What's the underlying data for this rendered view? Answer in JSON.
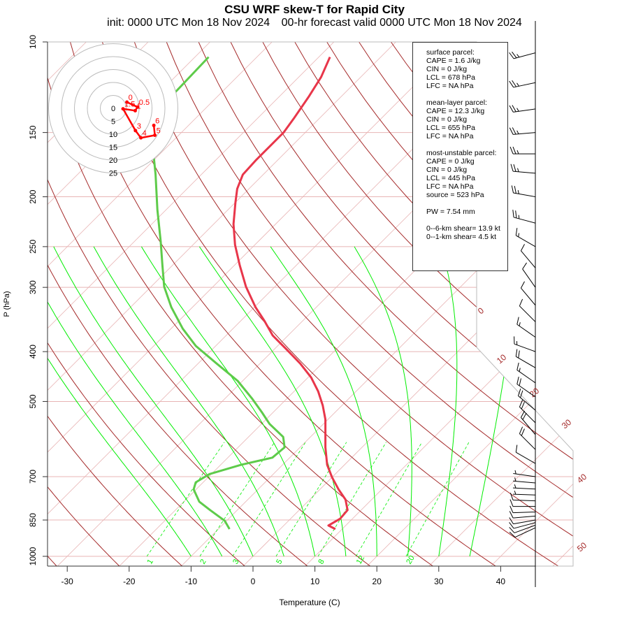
{
  "title": "CSU WRF skew-T for Rapid City",
  "subtitle_init": "init: 0000 UTC Mon 18 Nov 2024",
  "subtitle_valid": "00-hr forecast valid 0000 UTC Mon 18 Nov 2024",
  "info": {
    "surface": [
      "surface parcel:",
      "CAPE = 1.6 J/kg",
      "CIN = 0 J/kg",
      "LCL = 678 hPa",
      "LFC = NA hPa"
    ],
    "mean_layer": [
      "mean-layer parcel:",
      "CAPE = 12.3 J/kg",
      "CIN = 0 J/kg",
      "LCL = 655 hPa",
      "LFC = NA hPa"
    ],
    "most_unstable": [
      "most-unstable parcel:",
      "CAPE = 0 J/kg",
      "CIN = 0 J/kg",
      "LCL = 445 hPa",
      "LFC = NA hPa",
      "source = 523 hPa"
    ],
    "pw": "PW =  7.54 mm",
    "shear": [
      "0--6-km shear= 13.9 kt",
      "0--1-km shear= 4.5 kt"
    ]
  },
  "colors": {
    "temperature": "#e8364a",
    "dewpoint": "#5ecb4a",
    "dry_adiabat": "#a52a2a",
    "isotherm": "#e8b4b4",
    "moist": "#00ee00",
    "hodo": "#ff0000"
  },
  "chart_data": {
    "type": "line",
    "xlabel": "Temperature (C)",
    "ylabel": "P (hPa)",
    "xticks": [
      "-30",
      "-20",
      "-10",
      "0",
      "10",
      "20",
      "30",
      "40"
    ],
    "xtick_values": [
      -30,
      -20,
      -10,
      0,
      10,
      20,
      30,
      40
    ],
    "yticks": [
      "100",
      "150",
      "200",
      "250",
      "300",
      "400",
      "500",
      "700",
      "850",
      "1000"
    ],
    "ytick_values": [
      100,
      150,
      200,
      250,
      300,
      400,
      500,
      700,
      850,
      1000
    ],
    "isotherm_labels": [
      "0",
      "10",
      "20",
      "30",
      "40",
      "50"
    ],
    "mixing_ratio_labels": [
      "1",
      "2",
      "3",
      "5",
      "8",
      "12",
      "20"
    ],
    "mixing_ratio_values": [
      1,
      2,
      3,
      5,
      8,
      12,
      20
    ],
    "series": [
      {
        "name": "temperature",
        "p": [
          885,
          871,
          845,
          813,
          776,
          741,
          702,
          664,
          614,
          542,
          509,
          478,
          449,
          422,
          396,
          372,
          349,
          328,
          299,
          272,
          248,
          226,
          205,
          193,
          181,
          170,
          160,
          150,
          141,
          128,
          117,
          107
        ],
        "t": [
          8.9,
          7.2,
          8.0,
          7.8,
          5.8,
          3.0,
          0.0,
          -2.8,
          -5.9,
          -10.4,
          -13.1,
          -16.1,
          -19.5,
          -23.5,
          -28.0,
          -32.5,
          -36.1,
          -39.8,
          -44.7,
          -49.1,
          -53.2,
          -56.8,
          -60.0,
          -61.9,
          -63.3,
          -63.5,
          -63.5,
          -63.5,
          -64.1,
          -65.2,
          -66.4,
          -68.2
        ]
      },
      {
        "name": "dewpoint",
        "p": [
          885,
          853,
          813,
          783,
          741,
          718,
          692,
          664,
          643,
          614,
          586,
          553,
          525,
          493,
          456,
          422,
          390,
          361,
          328,
          299,
          272,
          244,
          212,
          181,
          162,
          155,
          126,
          107
        ],
        "t": [
          -8.2,
          -10.3,
          -14.4,
          -17.5,
          -20.4,
          -21.2,
          -20.3,
          -16.7,
          -12.8,
          -12.5,
          -14.4,
          -18.7,
          -21.8,
          -25.7,
          -30.8,
          -37.0,
          -43.2,
          -48.1,
          -53.4,
          -57.9,
          -61.6,
          -65.8,
          -71.4,
          -77.4,
          -81.8,
          -83.9,
          -87.5,
          -87.8
        ]
      }
    ],
    "hodograph": {
      "ring_labels": [
        "0",
        "5",
        "10",
        "15",
        "20",
        "25"
      ],
      "ring_values": [
        0,
        5,
        10,
        15,
        20,
        25
      ],
      "points": [
        {
          "label": "0",
          "u": 5.3,
          "v": 2.4
        },
        {
          "label": "0.5",
          "u": 9.4,
          "v": 0.5
        },
        {
          "label": "1",
          "u": 8.5,
          "v": -0.9
        },
        {
          "label": "1.5",
          "u": 3.8,
          "v": -0.2
        },
        {
          "label": "3",
          "u": 8.6,
          "v": -8.6
        },
        {
          "label": "4",
          "u": 10.7,
          "v": -11.4
        },
        {
          "label": "5",
          "u": 16.1,
          "v": -10.4
        },
        {
          "label": "6",
          "u": 15.7,
          "v": -6.6
        }
      ]
    },
    "wind_barbs": [
      {
        "p": 880,
        "dir": 245,
        "spd": 10
      },
      {
        "p": 870,
        "dir": 250,
        "spd": 10
      },
      {
        "p": 860,
        "dir": 255,
        "spd": 10
      },
      {
        "p": 850,
        "dir": 260,
        "spd": 10
      },
      {
        "p": 835,
        "dir": 265,
        "spd": 10
      },
      {
        "p": 820,
        "dir": 268,
        "spd": 10
      },
      {
        "p": 800,
        "dir": 270,
        "spd": 10
      },
      {
        "p": 780,
        "dir": 272,
        "spd": 10
      },
      {
        "p": 760,
        "dir": 272,
        "spd": 5
      },
      {
        "p": 740,
        "dir": 273,
        "spd": 5
      },
      {
        "p": 720,
        "dir": 275,
        "spd": 5
      },
      {
        "p": 700,
        "dir": 278,
        "spd": 5
      },
      {
        "p": 660,
        "dir": 300,
        "spd": 10
      },
      {
        "p": 620,
        "dir": 315,
        "spd": 20
      },
      {
        "p": 580,
        "dir": 320,
        "spd": 20
      },
      {
        "p": 550,
        "dir": 315,
        "spd": 20
      },
      {
        "p": 520,
        "dir": 310,
        "spd": 20
      },
      {
        "p": 490,
        "dir": 305,
        "spd": 20
      },
      {
        "p": 460,
        "dir": 305,
        "spd": 15
      },
      {
        "p": 430,
        "dir": 300,
        "spd": 20
      },
      {
        "p": 400,
        "dir": 290,
        "spd": 15
      },
      {
        "p": 375,
        "dir": 305,
        "spd": 15
      },
      {
        "p": 350,
        "dir": 315,
        "spd": 10
      },
      {
        "p": 325,
        "dir": 320,
        "spd": 10
      },
      {
        "p": 300,
        "dir": 325,
        "spd": 10
      },
      {
        "p": 275,
        "dir": 320,
        "spd": 10
      },
      {
        "p": 250,
        "dir": 300,
        "spd": 15
      },
      {
        "p": 225,
        "dir": 285,
        "spd": 25
      },
      {
        "p": 200,
        "dir": 280,
        "spd": 25
      },
      {
        "p": 180,
        "dir": 275,
        "spd": 25
      },
      {
        "p": 165,
        "dir": 270,
        "spd": 25
      },
      {
        "p": 150,
        "dir": 265,
        "spd": 25
      },
      {
        "p": 135,
        "dir": 262,
        "spd": 25
      },
      {
        "p": 120,
        "dir": 258,
        "spd": 25
      },
      {
        "p": 105,
        "dir": 255,
        "spd": 25
      }
    ]
  }
}
